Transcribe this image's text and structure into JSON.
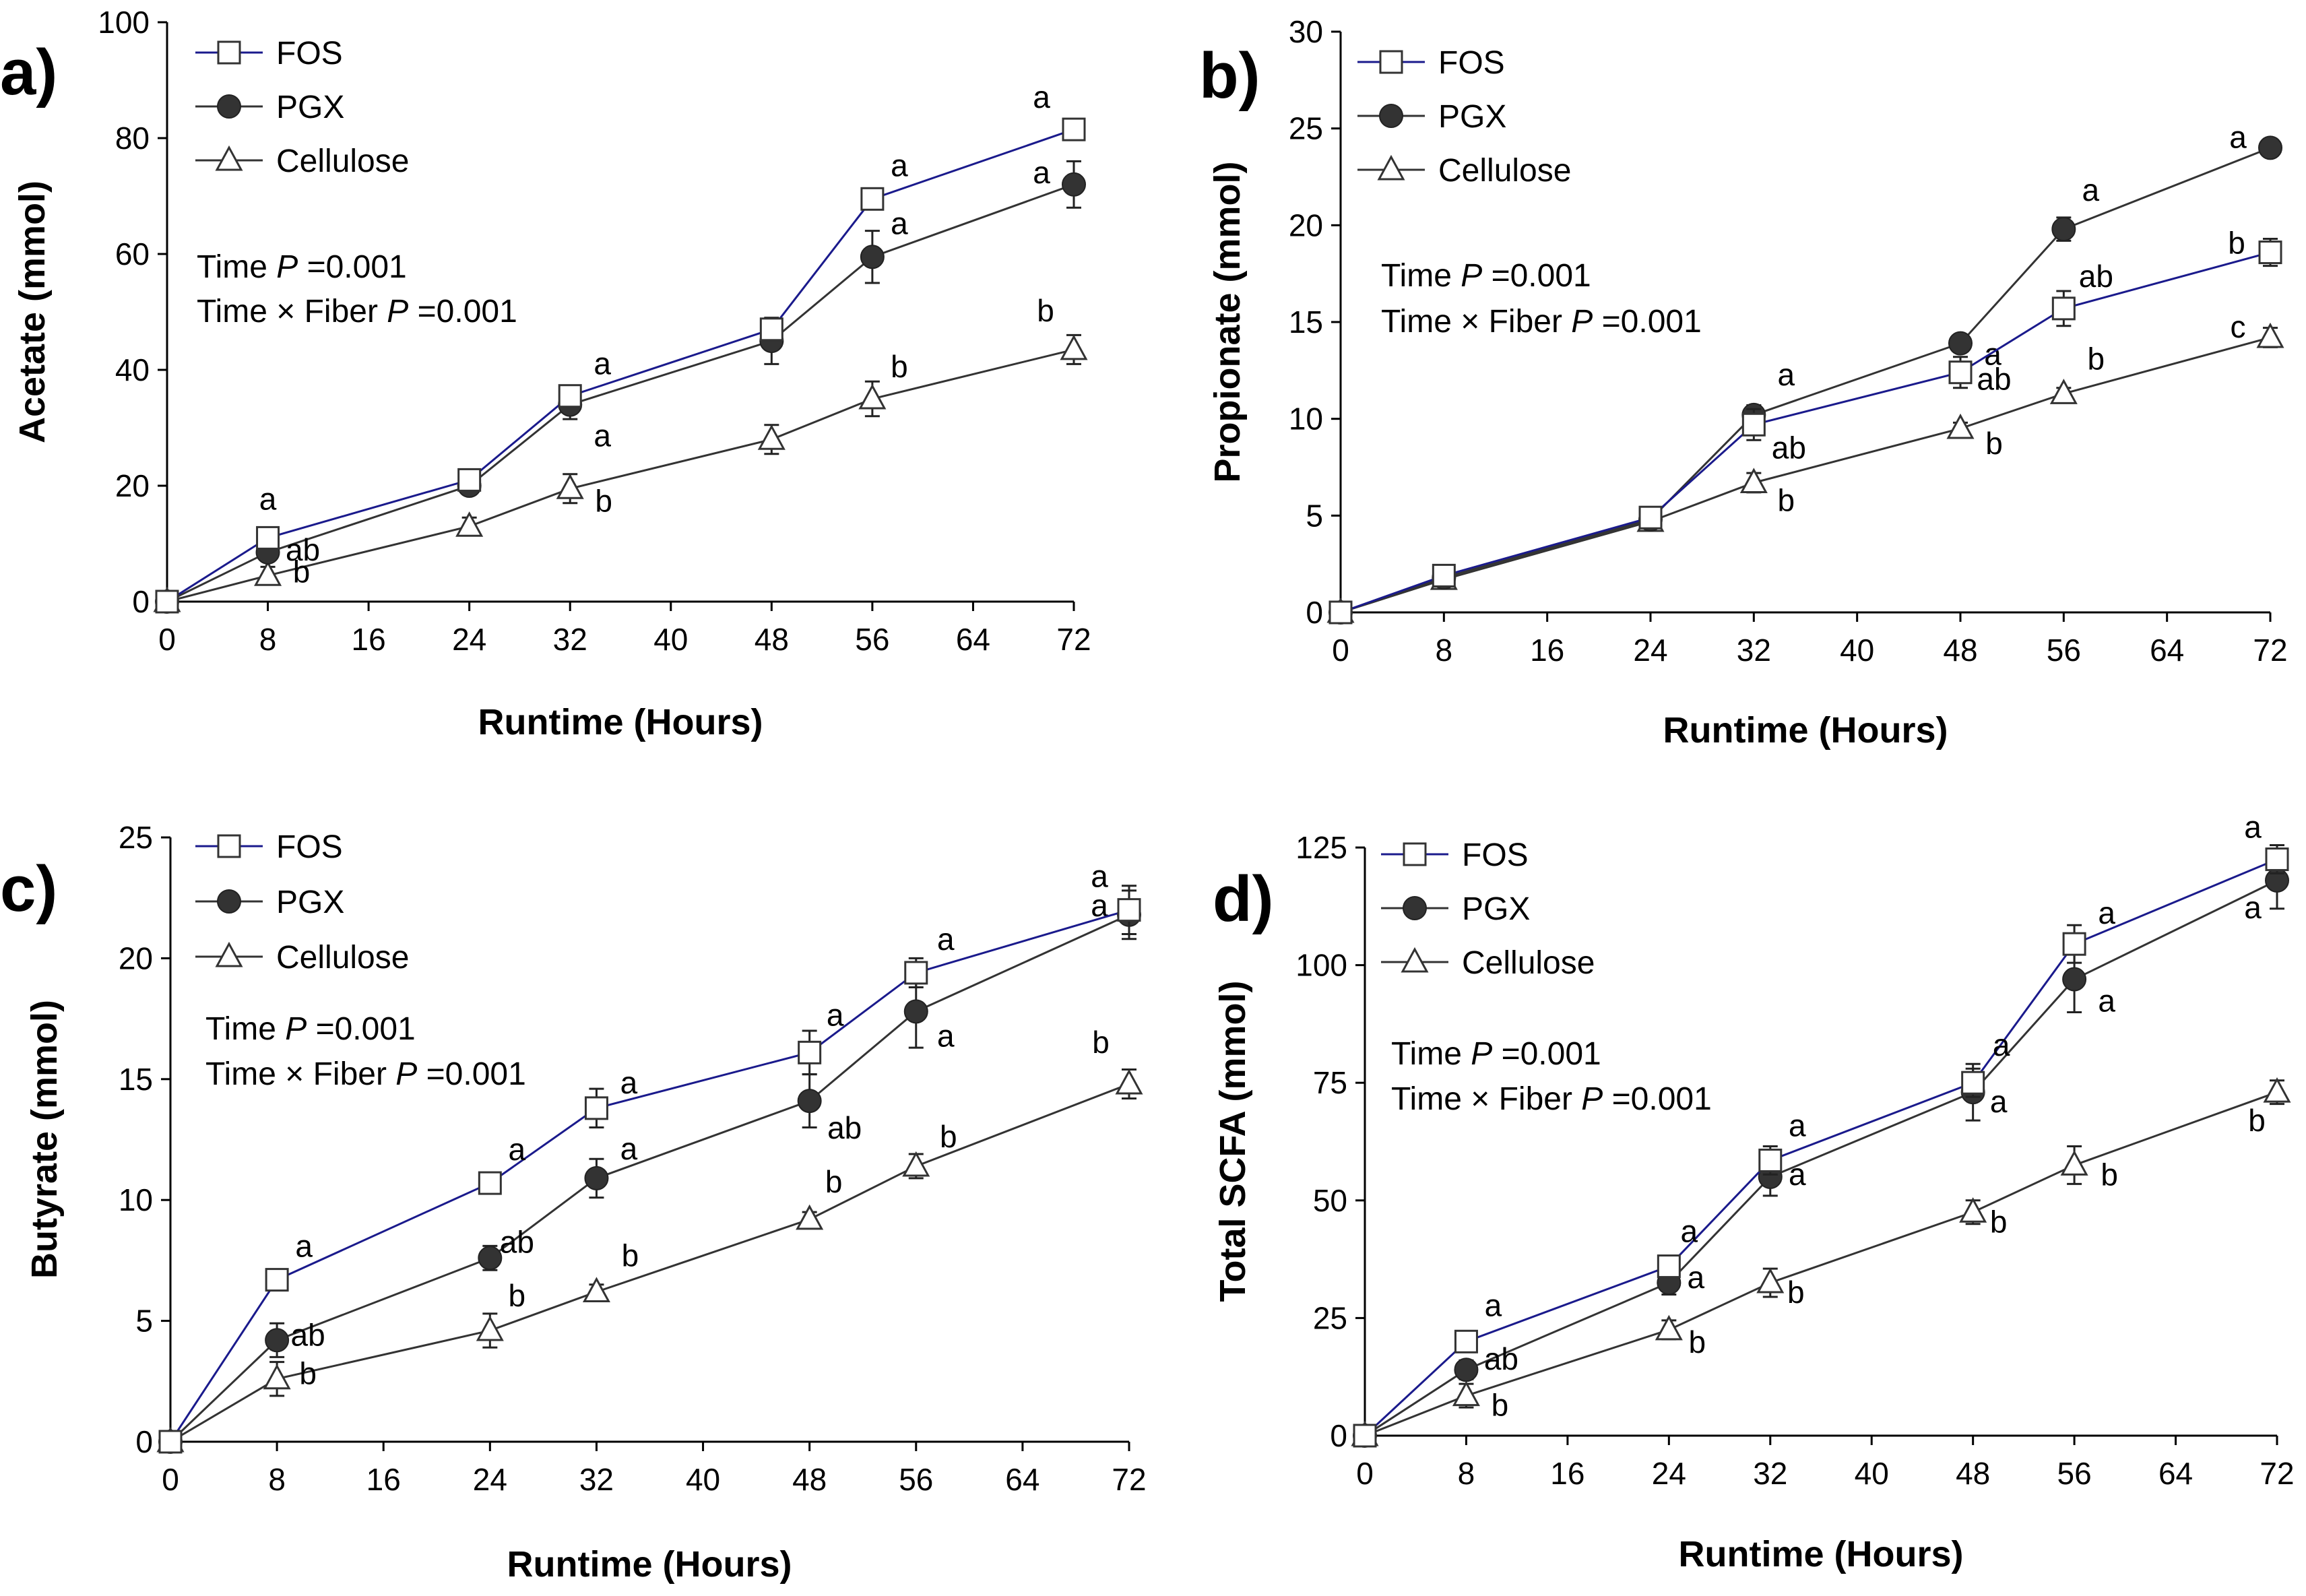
{
  "colors": {
    "fos": "#1a1a8c",
    "pgx": "#333333",
    "cellulose": "#333333",
    "axis": "#000000"
  },
  "legend": {
    "fos": "FOS",
    "pgx": "PGX",
    "cellulose": "Cellulose"
  },
  "chart_data": [
    {
      "type": "line",
      "panel_label": "a)",
      "xlabel": "Runtime (Hours)",
      "ylabel": "Acetate (mmol)",
      "xlim": [
        0,
        72
      ],
      "ylim": [
        0,
        100
      ],
      "xticks": [
        0,
        8,
        16,
        24,
        32,
        40,
        48,
        56,
        64,
        72
      ],
      "yticks": [
        0,
        20,
        40,
        60,
        80,
        100
      ],
      "xtick_labels": [
        "0",
        "8",
        "16",
        "24",
        "32",
        "40",
        "48",
        "56",
        "64",
        "72"
      ],
      "ytick_labels": [
        "0",
        "20",
        "40",
        "60",
        "80",
        "100"
      ],
      "x": [
        0,
        8,
        24,
        32,
        48,
        56,
        72
      ],
      "stats_line1_pre": "Time ",
      "stats_line1_p": "P",
      "stats_line1_post": " =0.001",
      "stats_line2_pre": "Time × Fiber ",
      "stats_line2_p": "P",
      "stats_line2_post": " =0.001",
      "series": [
        {
          "name": "FOS",
          "values": [
            0,
            11,
            21,
            35.5,
            47,
            69.5,
            81.5
          ],
          "errors": [
            0,
            1,
            1.2,
            1.5,
            1.5,
            1.5,
            1.5
          ],
          "labels": [
            "",
            "a",
            "",
            "a",
            "",
            "a",
            "a"
          ]
        },
        {
          "name": "PGX",
          "values": [
            0,
            8.5,
            20,
            34,
            45,
            59.5,
            72
          ],
          "errors": [
            0,
            1.5,
            1.5,
            2.5,
            4,
            4.5,
            4
          ],
          "labels": [
            "",
            "ab",
            "",
            "a",
            "",
            "a",
            "a"
          ]
        },
        {
          "name": "Cellulose",
          "values": [
            0,
            4.5,
            13,
            19.5,
            28,
            35,
            43.5
          ],
          "errors": [
            0,
            1.5,
            1.5,
            2.5,
            2.5,
            3,
            2.5
          ],
          "labels": [
            "",
            "b",
            "",
            "b",
            "",
            "b",
            "b"
          ]
        }
      ]
    },
    {
      "type": "line",
      "panel_label": "b)",
      "xlabel": "Runtime (Hours)",
      "ylabel": "Propionate (mmol)",
      "xlim": [
        0,
        72
      ],
      "ylim": [
        0,
        30
      ],
      "xticks": [
        0,
        8,
        16,
        24,
        32,
        40,
        48,
        56,
        64,
        72
      ],
      "yticks": [
        0,
        5,
        10,
        15,
        20,
        25,
        30
      ],
      "xtick_labels": [
        "0",
        "8",
        "16",
        "24",
        "32",
        "40",
        "48",
        "56",
        "64",
        "72"
      ],
      "ytick_labels": [
        "0",
        "5",
        "10",
        "15",
        "20",
        "25",
        "30"
      ],
      "x": [
        0,
        8,
        24,
        32,
        48,
        56,
        72
      ],
      "stats_line1_pre": "Time ",
      "stats_line1_p": "P",
      "stats_line1_post": " =0.001",
      "stats_line2_pre": "Time × Fiber ",
      "stats_line2_p": "P",
      "stats_line2_post": " =0.001",
      "series": [
        {
          "name": "FOS",
          "values": [
            0,
            1.9,
            4.9,
            9.7,
            12.4,
            15.7,
            18.6
          ],
          "errors": [
            0,
            0.2,
            0.2,
            0.8,
            0.8,
            0.9,
            0.7
          ],
          "labels": [
            "",
            "",
            "",
            "ab",
            "ab",
            "ab",
            "b"
          ]
        },
        {
          "name": "PGX",
          "values": [
            0,
            1.8,
            4.8,
            10.2,
            13.9,
            19.8,
            24.0
          ],
          "errors": [
            0,
            0.2,
            0.2,
            0.5,
            0.4,
            0.6,
            0.3
          ],
          "labels": [
            "",
            "",
            "",
            "a",
            "a",
            "a",
            "a"
          ]
        },
        {
          "name": "Cellulose",
          "values": [
            0,
            1.7,
            4.7,
            6.7,
            9.5,
            11.3,
            14.2
          ],
          "errors": [
            0,
            0.2,
            0.2,
            0.5,
            0.3,
            0.3,
            0.5
          ],
          "labels": [
            "",
            "",
            "",
            "b",
            "b",
            "b",
            "c"
          ]
        }
      ]
    },
    {
      "type": "line",
      "panel_label": "c)",
      "xlabel": "Runtime (Hours)",
      "ylabel": "Butyrate (mmol)",
      "xlim": [
        0,
        72
      ],
      "ylim": [
        0,
        25
      ],
      "xticks": [
        0,
        8,
        16,
        24,
        32,
        40,
        48,
        56,
        64,
        72
      ],
      "yticks": [
        0,
        5,
        10,
        15,
        20,
        25
      ],
      "xtick_labels": [
        "0",
        "8",
        "16",
        "24",
        "32",
        "40",
        "48",
        "56",
        "64",
        "72"
      ],
      "ytick_labels": [
        "0",
        "5",
        "10",
        "15",
        "20",
        "25"
      ],
      "x": [
        0,
        8,
        24,
        32,
        48,
        56,
        72
      ],
      "stats_line1_pre": "Time ",
      "stats_line1_p": "P",
      "stats_line1_post": " =0.001",
      "stats_line2_pre": "Time × Fiber ",
      "stats_line2_p": "P",
      "stats_line2_post": " =0.001",
      "series": [
        {
          "name": "FOS",
          "values": [
            0,
            6.7,
            10.7,
            13.8,
            16.1,
            19.4,
            22.0
          ],
          "errors": [
            0,
            0.2,
            0.3,
            0.8,
            0.9,
            0.6,
            1.0
          ],
          "labels": [
            "",
            "a",
            "a",
            "a",
            "a",
            "a",
            "a"
          ]
        },
        {
          "name": "PGX",
          "values": [
            0,
            4.2,
            7.6,
            10.9,
            14.1,
            17.8,
            21.8
          ],
          "errors": [
            0,
            0.7,
            0.5,
            0.8,
            1.1,
            1.5,
            1.0
          ],
          "labels": [
            "",
            "ab",
            "ab",
            "a",
            "ab",
            "a",
            "a"
          ]
        },
        {
          "name": "Cellulose",
          "values": [
            0,
            2.6,
            4.6,
            6.2,
            9.2,
            11.4,
            14.8
          ],
          "errors": [
            0,
            0.7,
            0.7,
            0.3,
            0.3,
            0.5,
            0.6
          ],
          "labels": [
            "",
            "b",
            "b",
            "b",
            "b",
            "b",
            "b"
          ]
        }
      ]
    },
    {
      "type": "line",
      "panel_label": "d)",
      "xlabel": "Runtime (Hours)",
      "ylabel": "Total SCFA (mmol)",
      "xlim": [
        0,
        72
      ],
      "ylim": [
        0,
        125
      ],
      "xticks": [
        0,
        8,
        16,
        24,
        32,
        40,
        48,
        56,
        64,
        72
      ],
      "yticks": [
        0,
        25,
        50,
        75,
        100,
        125
      ],
      "xtick_labels": [
        "0",
        "8",
        "16",
        "24",
        "32",
        "40",
        "48",
        "56",
        "64",
        "72"
      ],
      "ytick_labels": [
        "0",
        "25",
        "50",
        "75",
        "100",
        "125"
      ],
      "x": [
        0,
        8,
        24,
        32,
        48,
        56,
        72
      ],
      "stats_line1_pre": "Time ",
      "stats_line1_p": "P",
      "stats_line1_post": " =0.001",
      "stats_line2_pre": "Time × Fiber ",
      "stats_line2_p": "P",
      "stats_line2_post": " =0.001",
      "series": [
        {
          "name": "FOS",
          "values": [
            0,
            20,
            36,
            58.5,
            75,
            104.5,
            122.5
          ],
          "errors": [
            0,
            1.5,
            2,
            3,
            3,
            4,
            3
          ],
          "labels": [
            "",
            "a",
            "a",
            "a",
            "a",
            "a",
            "a"
          ]
        },
        {
          "name": "PGX",
          "values": [
            0,
            14,
            32.5,
            55,
            73,
            97,
            118
          ],
          "errors": [
            0,
            2,
            2.5,
            4,
            6,
            7,
            6
          ],
          "labels": [
            "",
            "ab",
            "a",
            "a",
            "a",
            "a",
            "a"
          ]
        },
        {
          "name": "Cellulose",
          "values": [
            0,
            8.5,
            22.5,
            32.5,
            47.5,
            57.5,
            73
          ],
          "errors": [
            0,
            2.5,
            2,
            3,
            2.5,
            4,
            2.5
          ],
          "labels": [
            "",
            "b",
            "b",
            "b",
            "b",
            "b",
            "b"
          ]
        }
      ]
    }
  ]
}
